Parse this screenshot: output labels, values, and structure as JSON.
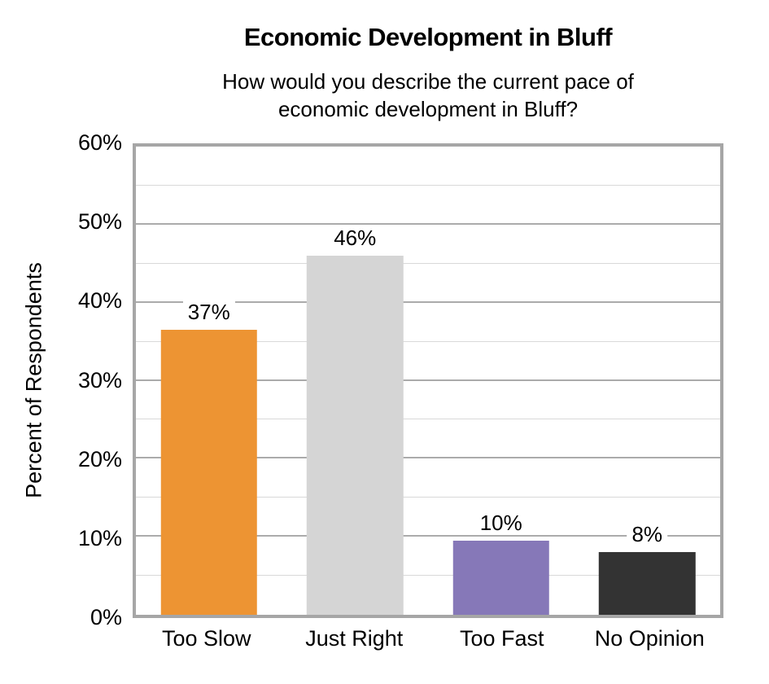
{
  "header": {
    "title": "Economic Development in Bluff",
    "subtitle": "How would you describe the current pace of economic development in Bluff?"
  },
  "chart_data": {
    "type": "bar",
    "title": "Economic Development in Bluff",
    "subtitle": "How would you describe the current pace of economic development in Bluff?",
    "categories": [
      "Too Slow",
      "Just Right",
      "Too Fast",
      "No Opinion"
    ],
    "values": [
      37,
      46,
      10,
      8
    ],
    "data_labels": [
      "37%",
      "46%",
      "10%",
      "8%"
    ],
    "bar_heights_pct": [
      36.5,
      46,
      9.5,
      8
    ],
    "bar_colors": [
      "#ED9433",
      "#D5D5D5",
      "#8678B8",
      "#333333"
    ],
    "xlabel": "",
    "ylabel": "Percent of Respondents",
    "ylim": [
      0,
      60
    ],
    "y_major_step": 10,
    "y_minor_step": 5,
    "y_tick_labels": [
      "0%",
      "10%",
      "20%",
      "30%",
      "40%",
      "50%",
      "60%"
    ],
    "grid": "major and minor horizontal gridlines",
    "legend_position": "none"
  },
  "colors": {
    "plot_border": "#A6A6A6",
    "major_grid": "#ABABAB",
    "minor_grid": "#D9D9D9",
    "text": "#000000",
    "label_background": "#FFFFFF"
  }
}
